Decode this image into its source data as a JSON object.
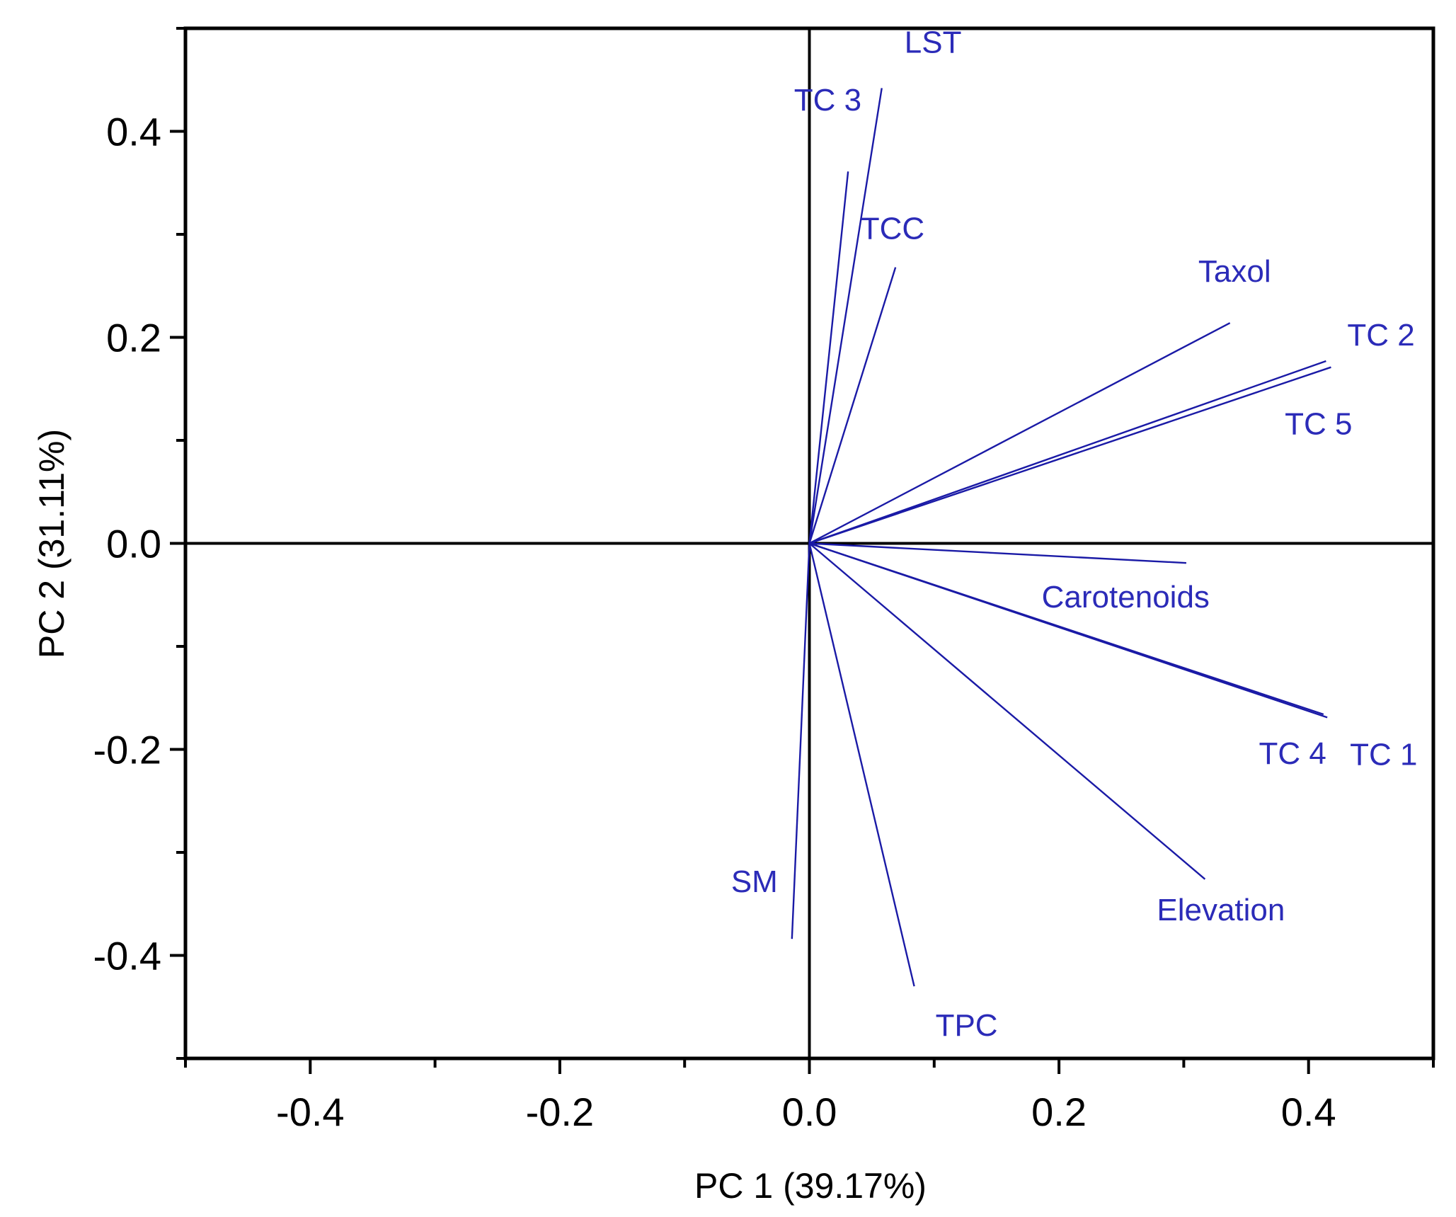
{
  "chart_data": {
    "type": "biplot",
    "xlabel": "PC 1 (39.17%)",
    "ylabel": "PC 2 (31.11%)",
    "xlim": [
      -0.5,
      0.5
    ],
    "ylim": [
      -0.5,
      0.5
    ],
    "x_ticks": [
      -0.4,
      -0.2,
      0.0,
      0.2,
      0.4
    ],
    "x_tick_labels": [
      "-0.4",
      "-0.2",
      "0.0",
      "0.2",
      "0.4"
    ],
    "y_ticks": [
      -0.4,
      -0.2,
      0.0,
      0.2,
      0.4
    ],
    "y_tick_labels": [
      "-0.4",
      "-0.2",
      "0.0",
      "0.2",
      "0.4"
    ],
    "grid": false,
    "vector_color": "#1a1aa6",
    "label_color": "#2b2bb8",
    "vectors": [
      {
        "name": "LST",
        "x": 0.058,
        "y": 0.442
      },
      {
        "name": "TC 3",
        "x": 0.031,
        "y": 0.361
      },
      {
        "name": "TCC",
        "x": 0.069,
        "y": 0.268
      },
      {
        "name": "Taxol",
        "x": 0.337,
        "y": 0.214
      },
      {
        "name": "TC 2",
        "x": 0.414,
        "y": 0.177
      },
      {
        "name": "TC 5",
        "x": 0.418,
        "y": 0.171
      },
      {
        "name": "Carotenoids",
        "x": 0.302,
        "y": -0.019
      },
      {
        "name": "TC 4",
        "x": 0.412,
        "y": -0.166
      },
      {
        "name": "TC 1",
        "x": 0.415,
        "y": -0.169
      },
      {
        "name": "Elevation",
        "x": 0.317,
        "y": -0.326
      },
      {
        "name": "TPC",
        "x": 0.084,
        "y": -0.43
      },
      {
        "name": "SM",
        "x": -0.014,
        "y": -0.384
      }
    ]
  }
}
